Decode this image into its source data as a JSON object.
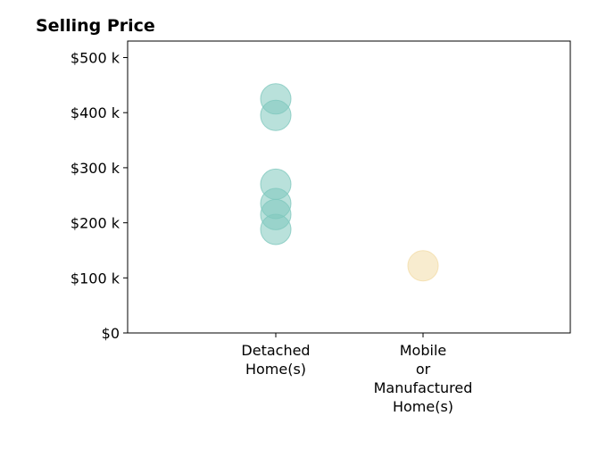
{
  "chart_data": {
    "type": "scatter",
    "title": "Selling Price",
    "xlabel": "",
    "ylabel": "",
    "categories": [
      "Detached Home(s)",
      "Mobile or Manufactured Home(s)"
    ],
    "category_label_lines": [
      [
        "Detached",
        "Home(s)"
      ],
      [
        "Mobile",
        "or",
        "Manufactured",
        "Home(s)"
      ]
    ],
    "series": [
      {
        "category": "Detached Home(s)",
        "color": "#80c8be",
        "values": [
          425000,
          395000,
          270000,
          235000,
          215000,
          188000
        ]
      },
      {
        "category": "Mobile or Manufactured Home(s)",
        "color": "#f2dca8",
        "values": [
          122000
        ]
      }
    ],
    "yticks": [
      0,
      100000,
      200000,
      300000,
      400000,
      500000
    ],
    "ytick_labels": [
      "$0",
      "$100 k",
      "$200 k",
      "$300 k",
      "$400 k",
      "$500 k"
    ],
    "ylim": [
      0,
      530000
    ],
    "grid": false,
    "legend": "none"
  }
}
